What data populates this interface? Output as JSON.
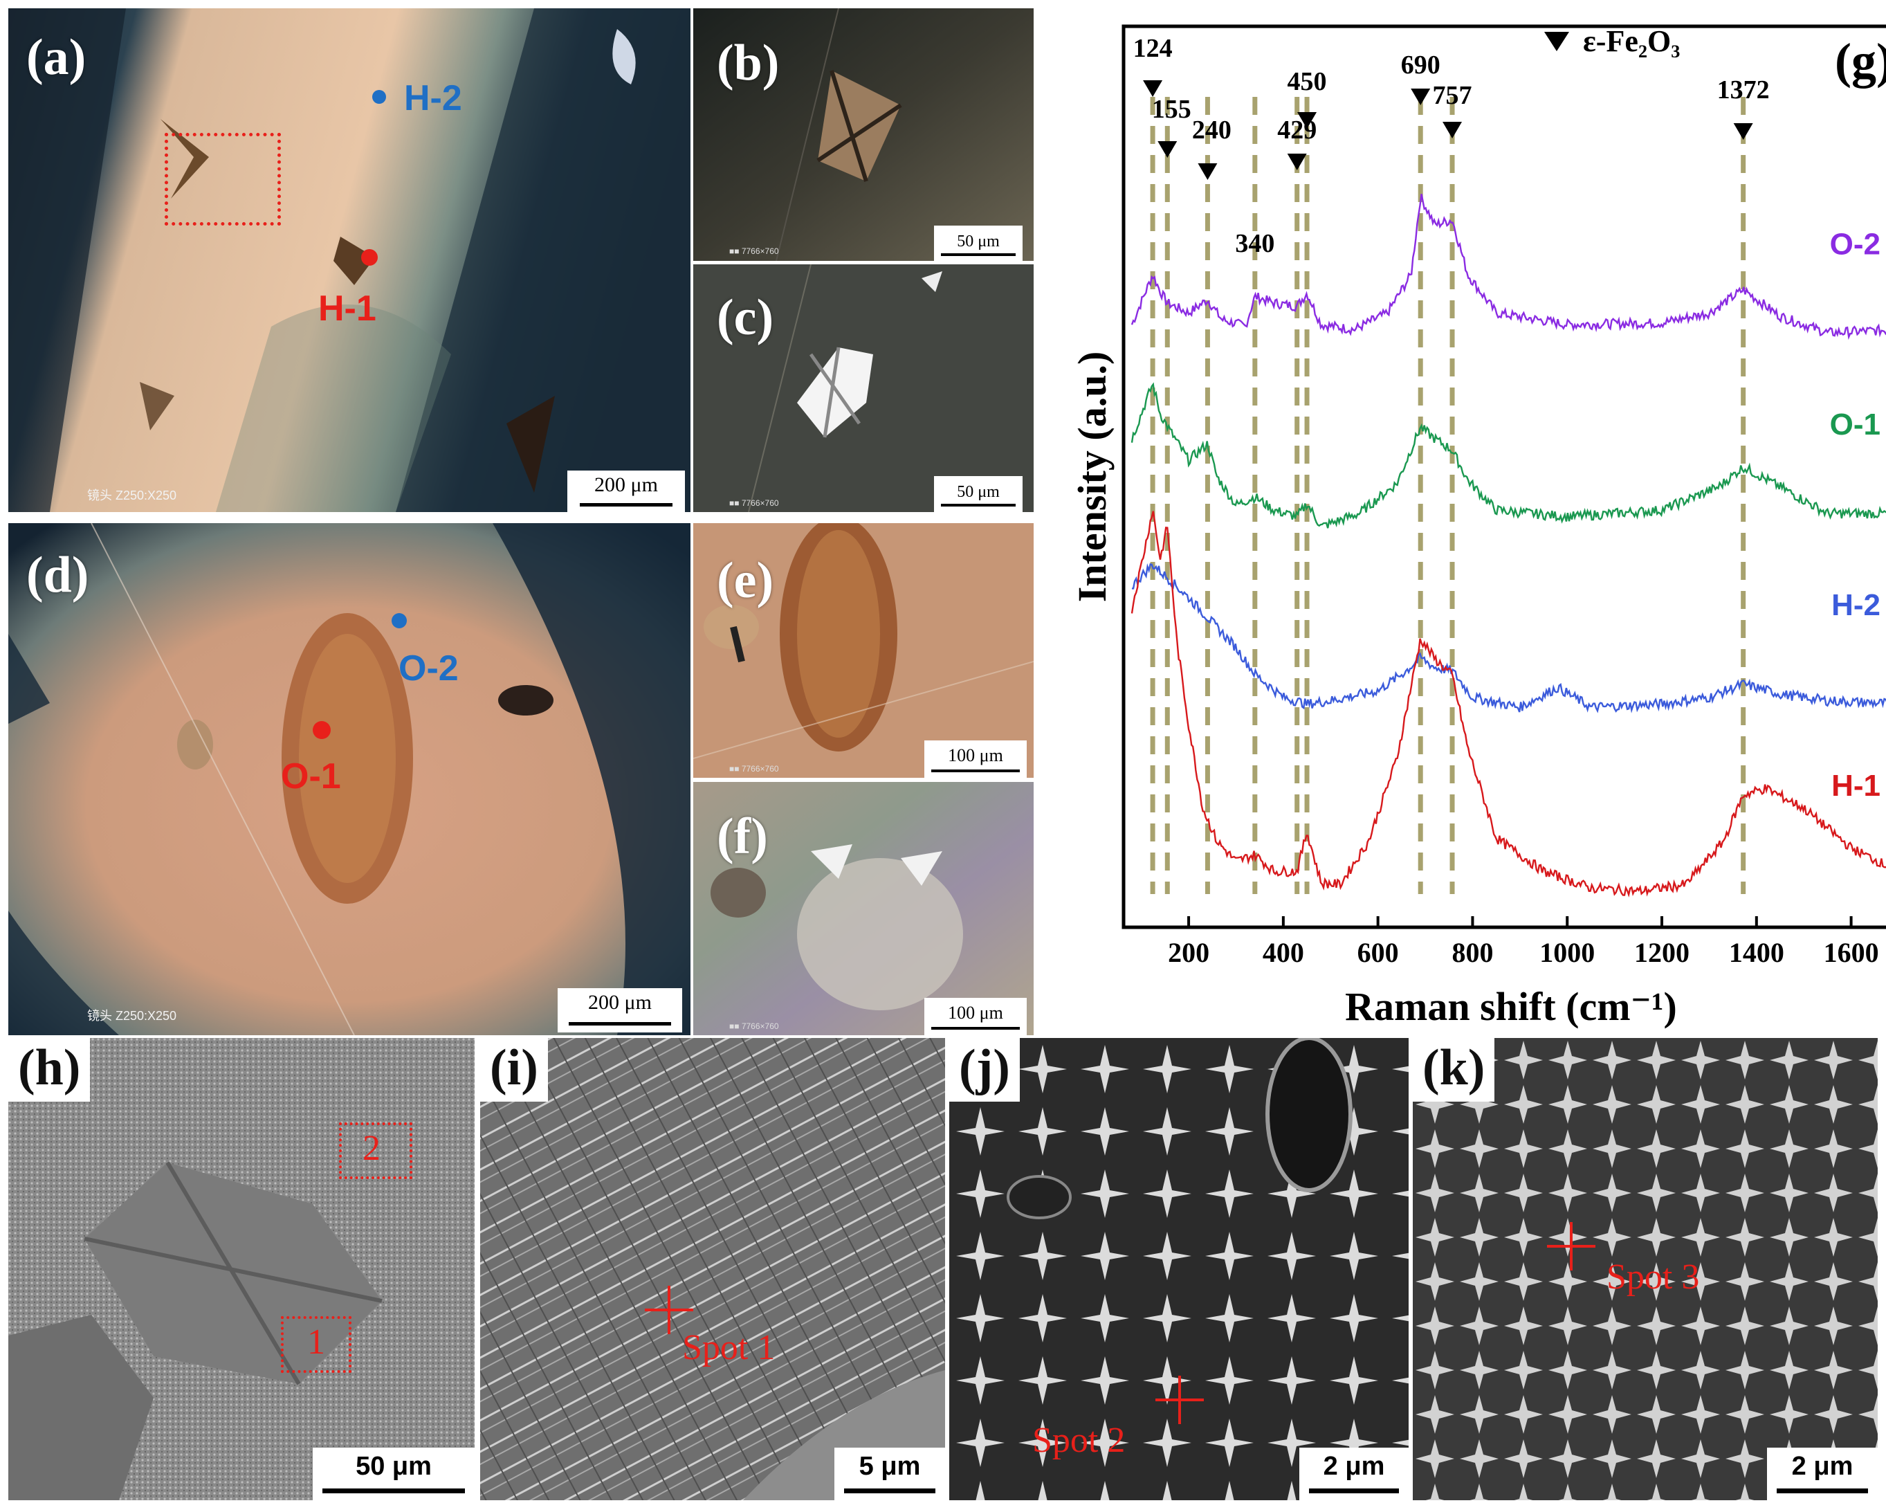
{
  "panels": {
    "a": {
      "label": "(a)",
      "scale": "200 μm",
      "lens": "镜头 Z250:X250",
      "points": [
        {
          "name": "H-2",
          "color": "#1f6fc5"
        },
        {
          "name": "H-1",
          "color": "#e8201a"
        }
      ]
    },
    "b": {
      "label": "(b)",
      "scale": "50 μm"
    },
    "c": {
      "label": "(c)",
      "scale": "50 μm"
    },
    "d": {
      "label": "(d)",
      "scale": "200 μm",
      "lens": "镜头 Z250:X250",
      "points": [
        {
          "name": "O-2",
          "color": "#1f6fc5"
        },
        {
          "name": "O-1",
          "color": "#e8201a"
        }
      ]
    },
    "e": {
      "label": "(e)",
      "scale": "100 μm"
    },
    "f": {
      "label": "(f)",
      "scale": "100 μm"
    },
    "h": {
      "label": "(h)",
      "scale": "50 μm",
      "boxes": [
        "2",
        "1"
      ]
    },
    "i": {
      "label": "(i)",
      "scale": "5 μm",
      "spot": "Spot 1"
    },
    "j": {
      "label": "(j)",
      "scale": "2 μm",
      "spot": "Spot 2"
    },
    "k": {
      "label": "(k)",
      "scale": "2 μm",
      "spot": "Spot 3"
    }
  },
  "chart_data": {
    "type": "line",
    "panel_label": "(g)",
    "legend": "ε-Fe₂O₃",
    "xlabel": "Raman shift (cm⁻¹)",
    "ylabel": "Intensity (a.u.)",
    "xlim": [
      80,
      1700
    ],
    "xticks": [
      200,
      400,
      600,
      800,
      1000,
      1200,
      1400,
      1600
    ],
    "yticks": "none",
    "grid": false,
    "peak_markers": [
      {
        "label": "124",
        "x": 124
      },
      {
        "label": "155",
        "x": 155
      },
      {
        "label": "240",
        "x": 240
      },
      {
        "label": "340",
        "x": 340
      },
      {
        "label": "429",
        "x": 429
      },
      {
        "label": "450",
        "x": 450
      },
      {
        "label": "690",
        "x": 690
      },
      {
        "label": "757",
        "x": 757
      },
      {
        "label": "1372",
        "x": 1372
      }
    ],
    "series": [
      {
        "name": "O-2",
        "color": "#8a2be2",
        "offset": 3.0,
        "points": [
          [
            80,
            0.25
          ],
          [
            124,
            0.55
          ],
          [
            140,
            0.45
          ],
          [
            155,
            0.38
          ],
          [
            200,
            0.32
          ],
          [
            240,
            0.4
          ],
          [
            270,
            0.28
          ],
          [
            320,
            0.24
          ],
          [
            340,
            0.42
          ],
          [
            380,
            0.38
          ],
          [
            429,
            0.36
          ],
          [
            450,
            0.44
          ],
          [
            480,
            0.25
          ],
          [
            550,
            0.22
          ],
          [
            620,
            0.32
          ],
          [
            670,
            0.55
          ],
          [
            690,
            1.02
          ],
          [
            720,
            0.85
          ],
          [
            757,
            0.88
          ],
          [
            790,
            0.55
          ],
          [
            850,
            0.32
          ],
          [
            1000,
            0.25
          ],
          [
            1200,
            0.26
          ],
          [
            1300,
            0.32
          ],
          [
            1372,
            0.46
          ],
          [
            1450,
            0.3
          ],
          [
            1550,
            0.2
          ],
          [
            1700,
            0.22
          ]
        ]
      },
      {
        "name": "O-1",
        "color": "#1a9850",
        "offset": 2.0,
        "points": [
          [
            80,
            0.65
          ],
          [
            124,
            0.98
          ],
          [
            140,
            0.8
          ],
          [
            160,
            0.7
          ],
          [
            200,
            0.52
          ],
          [
            240,
            0.62
          ],
          [
            260,
            0.42
          ],
          [
            300,
            0.25
          ],
          [
            340,
            0.3
          ],
          [
            380,
            0.22
          ],
          [
            429,
            0.18
          ],
          [
            450,
            0.26
          ],
          [
            480,
            0.12
          ],
          [
            560,
            0.2
          ],
          [
            640,
            0.38
          ],
          [
            690,
            0.72
          ],
          [
            720,
            0.65
          ],
          [
            757,
            0.58
          ],
          [
            790,
            0.4
          ],
          [
            850,
            0.22
          ],
          [
            1000,
            0.18
          ],
          [
            1200,
            0.22
          ],
          [
            1320,
            0.36
          ],
          [
            1372,
            0.48
          ],
          [
            1450,
            0.36
          ],
          [
            1550,
            0.2
          ],
          [
            1700,
            0.2
          ]
        ]
      },
      {
        "name": "H-2",
        "color": "#3b5bdb",
        "offset": 1.0,
        "points": [
          [
            80,
            0.85
          ],
          [
            124,
            0.98
          ],
          [
            155,
            0.9
          ],
          [
            200,
            0.78
          ],
          [
            240,
            0.66
          ],
          [
            300,
            0.48
          ],
          [
            340,
            0.32
          ],
          [
            400,
            0.18
          ],
          [
            450,
            0.14
          ],
          [
            500,
            0.16
          ],
          [
            600,
            0.22
          ],
          [
            660,
            0.34
          ],
          [
            690,
            0.42
          ],
          [
            720,
            0.36
          ],
          [
            757,
            0.34
          ],
          [
            800,
            0.18
          ],
          [
            900,
            0.12
          ],
          [
            980,
            0.24
          ],
          [
            1050,
            0.12
          ],
          [
            1200,
            0.14
          ],
          [
            1300,
            0.18
          ],
          [
            1372,
            0.26
          ],
          [
            1450,
            0.2
          ],
          [
            1550,
            0.16
          ],
          [
            1700,
            0.14
          ]
        ]
      },
      {
        "name": "H-1",
        "color": "#d7191c",
        "offset": 0.0,
        "points": [
          [
            80,
            1.8
          ],
          [
            110,
            2.2
          ],
          [
            124,
            2.4
          ],
          [
            140,
            2.1
          ],
          [
            155,
            2.3
          ],
          [
            175,
            1.6
          ],
          [
            200,
            1.1
          ],
          [
            230,
            0.6
          ],
          [
            260,
            0.4
          ],
          [
            300,
            0.28
          ],
          [
            340,
            0.32
          ],
          [
            380,
            0.22
          ],
          [
            429,
            0.22
          ],
          [
            450,
            0.46
          ],
          [
            480,
            0.15
          ],
          [
            520,
            0.14
          ],
          [
            580,
            0.4
          ],
          [
            640,
            0.9
          ],
          [
            690,
            1.62
          ],
          [
            720,
            1.5
          ],
          [
            757,
            1.4
          ],
          [
            790,
            0.96
          ],
          [
            850,
            0.42
          ],
          [
            950,
            0.22
          ],
          [
            1050,
            0.12
          ],
          [
            1150,
            0.1
          ],
          [
            1250,
            0.14
          ],
          [
            1330,
            0.4
          ],
          [
            1372,
            0.68
          ],
          [
            1420,
            0.72
          ],
          [
            1500,
            0.6
          ],
          [
            1600,
            0.36
          ],
          [
            1700,
            0.22
          ]
        ]
      }
    ]
  }
}
